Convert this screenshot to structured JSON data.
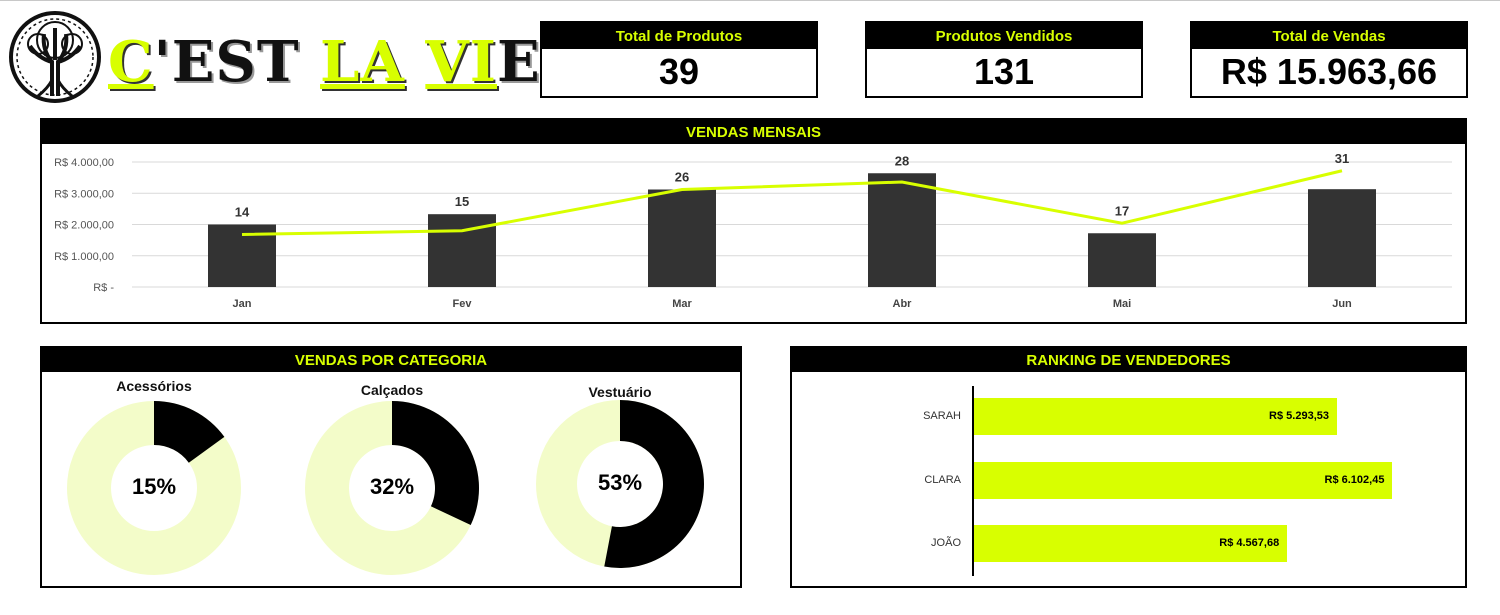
{
  "brand": {
    "word1_first": "C",
    "word1_rest": "'EST",
    "word2": "LA",
    "word3_accent": "VI",
    "word3_rest": "E"
  },
  "kpis": [
    {
      "label": "Total de Produtos",
      "value": "39"
    },
    {
      "label": "Produtos Vendidos",
      "value": "131"
    },
    {
      "label": "Total de Vendas",
      "value": "R$ 15.963,66"
    }
  ],
  "colors": {
    "accent": "#d8ff00",
    "bar": "#333333",
    "donut_light": "#f3fcc9",
    "black": "#000000"
  },
  "chart_data": [
    {
      "type": "bar",
      "title": "VENDAS MENSAIS",
      "categories": [
        "Jan",
        "Fev",
        "Mar",
        "Abr",
        "Mai",
        "Jun"
      ],
      "series": [
        {
          "values": [
            2000,
            2330,
            3120,
            3640,
            1720,
            3130
          ]
        },
        {
          "type": "line",
          "values": [
            14,
            15,
            26,
            28,
            17,
            31
          ]
        }
      ],
      "data_labels": [
        "14",
        "15",
        "26",
        "28",
        "17",
        "31"
      ],
      "y_ticks": [
        "R$ -",
        "R$ 1.000,00",
        "R$ 2.000,00",
        "R$ 3.000,00",
        "R$ 4.000,00"
      ],
      "ylim": [
        0,
        4000
      ],
      "grid": true
    },
    {
      "type": "pie",
      "title": "VENDAS POR CATEGORIA",
      "categories": [
        "Acessórios",
        "Calçados",
        "Vestuário"
      ],
      "values": [
        15,
        32,
        53
      ],
      "labels": [
        "15%",
        "32%",
        "53%"
      ]
    },
    {
      "type": "bar",
      "title": "RANKING DE VENDEDORES",
      "categories": [
        "SARAH",
        "CLARA",
        "JOÃO"
      ],
      "values": [
        5293.53,
        6102.45,
        4567.68
      ],
      "labels": [
        "R$ 5.293,53",
        "R$ 6.102,45",
        "R$ 4.567,68"
      ],
      "xlim": [
        0,
        7000
      ]
    }
  ]
}
